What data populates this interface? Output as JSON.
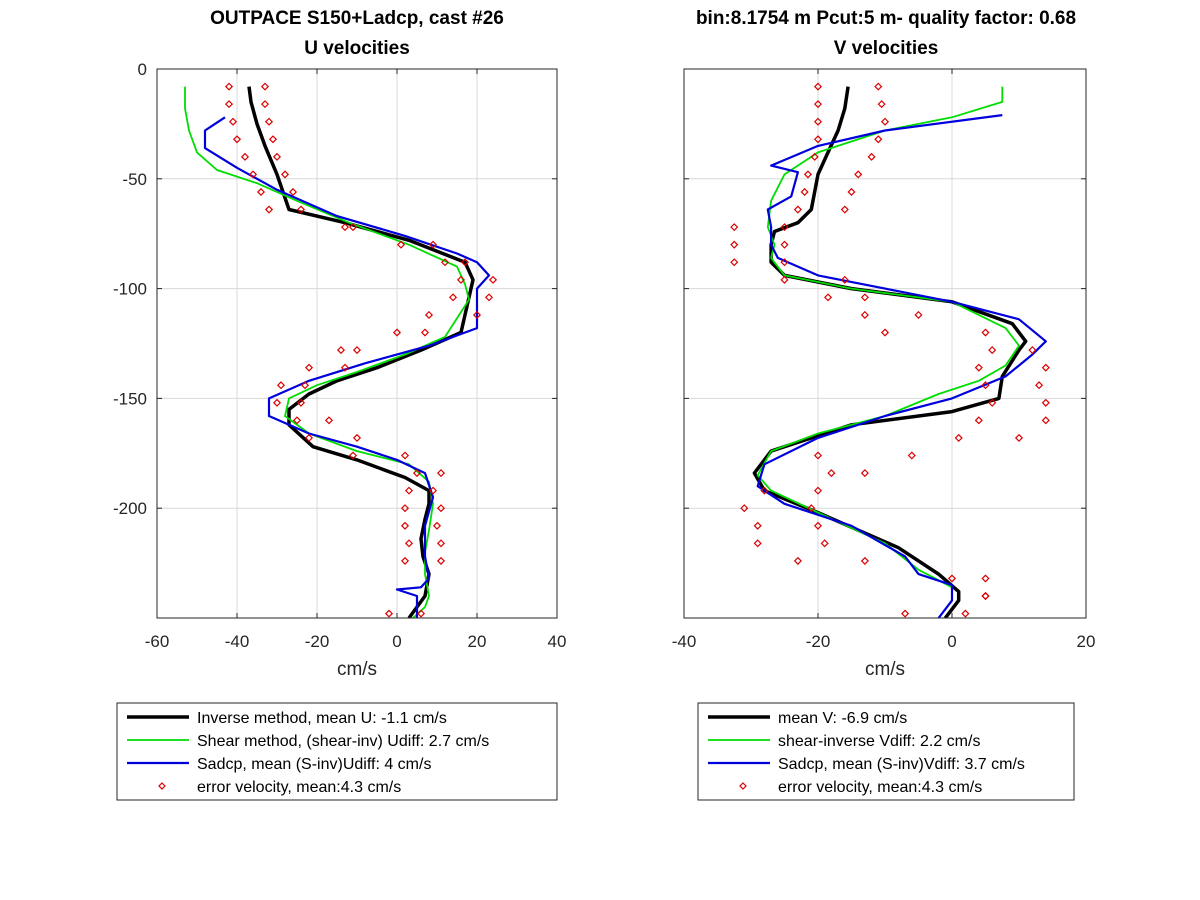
{
  "figure": {
    "left_title_line1": "OUTPACE S150+Ladcp, cast #26",
    "left_title_line2": "U velocities",
    "right_title_line1": "bin:8.1754 m  Pcut:5 m- quality factor:  0.68",
    "right_title_line2": "V velocities"
  },
  "colors": {
    "inverse": "#000000",
    "shear": "#00dd00",
    "sadcp": "#0000dd",
    "error": "#dd0000",
    "grid": "#d8d8d8"
  },
  "chart_data": [
    {
      "type": "line",
      "title": "U velocities",
      "xlabel": "cm/s",
      "ylabel": "",
      "xlim": [
        -60,
        40
      ],
      "ylim": [
        -250,
        0
      ],
      "xticks": [
        "-60",
        "-40",
        "-20",
        "0",
        "20",
        "40"
      ],
      "yticks": [
        "0",
        "-50",
        "-100",
        "-150",
        "-200"
      ],
      "xtick_values": [
        -60,
        -40,
        -20,
        0,
        20,
        40
      ],
      "ytick_values": [
        0,
        -50,
        -100,
        -150,
        -200
      ],
      "grid": true,
      "legend": {
        "placement": "below",
        "entries": [
          "Inverse method, mean U:  -1.1 cm/s",
          "Shear method, (shear-inv)  Udiff:  2.7 cm/s",
          "Sadcp, mean (S-inv)Udiff: 4 cm/s",
          "error velocity, mean:4.3 cm/s"
        ]
      },
      "series": [
        {
          "name": "Inverse method, mean U:  -1.1 cm/s",
          "style": "line-thick",
          "x": [
            -37,
            -36.5,
            -35,
            -33,
            -30,
            -27,
            -13,
            3,
            17,
            19,
            18,
            16,
            6,
            -5,
            -15,
            -22,
            -27,
            -27,
            -21,
            -10,
            2,
            8,
            8,
            7,
            6,
            6.5,
            8,
            7,
            3
          ],
          "y": [
            -8,
            -15,
            -25,
            -35,
            -48,
            -64,
            -70,
            -78,
            -88,
            -96,
            -104,
            -120,
            -128,
            -136,
            -142,
            -148,
            -155,
            -162,
            -172,
            -178,
            -186,
            -192,
            -198,
            -205,
            -214,
            -222,
            -230,
            -240,
            -250
          ]
        },
        {
          "name": "Shear method, (shear-inv)  Udiff:  2.7 cm/s",
          "style": "line",
          "x": [
            -53,
            -53,
            -52,
            -50,
            -45,
            -35,
            -25,
            -12,
            3,
            15,
            17,
            18,
            12,
            2,
            -10,
            -20,
            -27,
            -28,
            -22,
            -10,
            3,
            8,
            9,
            8,
            7,
            7,
            8,
            7,
            4
          ],
          "y": [
            -8,
            -18,
            -28,
            -38,
            -46,
            -52,
            -60,
            -70,
            -80,
            -90,
            -98,
            -105,
            -122,
            -130,
            -138,
            -144,
            -150,
            -158,
            -166,
            -174,
            -180,
            -188,
            -198,
            -210,
            -220,
            -230,
            -240,
            -245,
            -250
          ]
        },
        {
          "name": "Sadcp, mean (S-inv)Udiff: 4 cm/s",
          "style": "line",
          "x": [
            -43,
            -48,
            -48,
            -40,
            -30,
            -15,
            2,
            15,
            20,
            23,
            20,
            20,
            8,
            -8,
            -22,
            -32,
            -32,
            -22,
            -10,
            0,
            7,
            9,
            7,
            7,
            8,
            6,
            0,
            5,
            5
          ],
          "y": [
            -22,
            -28,
            -36,
            -45,
            -55,
            -67,
            -76,
            -84,
            -88,
            -94,
            -100,
            -118,
            -126,
            -134,
            -142,
            -150,
            -158,
            -166,
            -172,
            -178,
            -184,
            -195,
            -208,
            -222,
            -232,
            -236,
            -237,
            -240,
            -250
          ]
        },
        {
          "name": "error velocity, mean:4.3 cm/s",
          "style": "markers",
          "x": [
            -42,
            -33,
            -42,
            -33,
            -41,
            -32,
            -40,
            -31,
            -38,
            -30,
            -36,
            -28,
            -34,
            -26,
            -32,
            -24,
            -13,
            -11,
            1,
            9,
            17,
            12,
            24,
            16,
            23,
            14,
            20,
            8,
            0,
            7,
            -14,
            -10,
            -22,
            -13,
            -29,
            -23,
            -30,
            -24,
            -25,
            -17,
            -22,
            -10,
            -11,
            2,
            5,
            11,
            3,
            9,
            2,
            11,
            2,
            10,
            3,
            11,
            2,
            11,
            -2,
            6
          ],
          "y": [
            -8,
            -8,
            -16,
            -16,
            -24,
            -24,
            -32,
            -32,
            -40,
            -40,
            -48,
            -48,
            -56,
            -56,
            -64,
            -64,
            -72,
            -72,
            -80,
            -80,
            -88,
            -88,
            -96,
            -96,
            -104,
            -104,
            -112,
            -112,
            -120,
            -120,
            -128,
            -128,
            -136,
            -136,
            -144,
            -144,
            -152,
            -152,
            -160,
            -160,
            -168,
            -168,
            -176,
            -176,
            -184,
            -184,
            -192,
            -192,
            -200,
            -200,
            -208,
            -208,
            -216,
            -216,
            -224,
            -224,
            -248,
            -248
          ]
        }
      ]
    },
    {
      "type": "line",
      "title": "V velocities",
      "xlabel": "cm/s",
      "ylabel": "",
      "xlim": [
        -40,
        20
      ],
      "ylim": [
        -250,
        0
      ],
      "xticks": [
        "-40",
        "-20",
        "0",
        "20"
      ],
      "yticks": [],
      "xtick_values": [
        -40,
        -20,
        0,
        20
      ],
      "ytick_values": [
        0,
        -50,
        -100,
        -150,
        -200
      ],
      "grid": true,
      "legend": {
        "placement": "below",
        "entries": [
          "mean V:  -6.9 cm/s",
          "shear-inverse Vdiff:  2.2 cm/s",
          "Sadcp, mean (S-inv)Vdiff: 3.7 cm/s",
          "error velocity, mean:4.3 cm/s"
        ]
      },
      "series": [
        {
          "name": "mean V:  -6.9 cm/s",
          "style": "line-thick",
          "x": [
            -15.5,
            -16,
            -17,
            -18.5,
            -20,
            -21,
            -23,
            -26.5,
            -27,
            -27,
            -25,
            -15,
            0,
            9,
            11,
            10,
            7.5,
            7,
            0,
            -15,
            -27,
            -29.5,
            -28,
            -20,
            -8,
            -2,
            1,
            1,
            -1
          ],
          "y": [
            -8,
            -18,
            -28,
            -38,
            -48,
            -64,
            -70,
            -74,
            -80,
            -88,
            -94,
            -100,
            -106,
            -116,
            -124,
            -128,
            -140,
            -150,
            -156,
            -162,
            -174,
            -184,
            -192,
            -202,
            -218,
            -230,
            -238,
            -242,
            -250
          ]
        },
        {
          "name": "shear-inverse Vdiff:  2.2 cm/s",
          "style": "line",
          "x": [
            7.5,
            7.5,
            0,
            -10,
            -20,
            -25,
            -27,
            -27.5,
            -26.5,
            -27,
            -25,
            -15,
            0,
            8,
            10,
            8,
            4,
            -2,
            -10,
            -20,
            -27,
            -29,
            -27,
            -20,
            -10,
            -5,
            0,
            0,
            -2
          ],
          "y": [
            -8,
            -15,
            -22,
            -28,
            -38,
            -48,
            -60,
            -72,
            -80,
            -86,
            -94,
            -100,
            -106,
            -118,
            -126,
            -135,
            -142,
            -148,
            -158,
            -166,
            -174,
            -185,
            -192,
            -202,
            -216,
            -228,
            -236,
            -242,
            -250
          ]
        },
        {
          "name": "Sadcp, mean (S-inv)Vdiff: 3.7 cm/s",
          "style": "line",
          "x": [
            7.5,
            -10,
            -20,
            -27,
            -23,
            -24,
            -27.5,
            -27,
            -27,
            -26,
            -20,
            -10,
            0,
            10,
            14,
            12,
            8,
            0,
            -10,
            -20,
            -28,
            -29,
            -25,
            -15,
            -7,
            -5,
            0,
            0,
            -2
          ],
          "y": [
            -21,
            -28,
            -35,
            -44,
            -47,
            -58,
            -64,
            -72,
            -80,
            -86,
            -94,
            -100,
            -106,
            -114,
            -124,
            -130,
            -140,
            -150,
            -158,
            -168,
            -180,
            -190,
            -198,
            -208,
            -222,
            -230,
            -235,
            -242,
            -250
          ]
        },
        {
          "name": "error velocity, mean:4.3 cm/s",
          "style": "markers",
          "x": [
            -20,
            -11,
            -20,
            -10.5,
            -20,
            -10,
            -20,
            -11,
            -20.5,
            -12,
            -21.5,
            -14,
            -22,
            -15,
            -23,
            -16,
            -32.5,
            -25,
            -32.5,
            -25,
            -32.5,
            -25,
            -25,
            -16,
            -18.5,
            -13,
            -13,
            -5,
            -10,
            5,
            6,
            12,
            4,
            14,
            5,
            13,
            6,
            14,
            4,
            14,
            1,
            10,
            -6,
            -20,
            -13,
            -18,
            -28,
            -20,
            -31,
            -21,
            -29,
            -20,
            -29,
            -19,
            -23,
            -13,
            0,
            5,
            5,
            5,
            -7,
            2
          ],
          "y": [
            -8,
            -8,
            -16,
            -16,
            -24,
            -24,
            -32,
            -32,
            -40,
            -40,
            -48,
            -48,
            -56,
            -56,
            -64,
            -64,
            -72,
            -72,
            -80,
            -80,
            -88,
            -88,
            -96,
            -96,
            -104,
            -104,
            -112,
            -112,
            -120,
            -120,
            -128,
            -128,
            -136,
            -136,
            -144,
            -144,
            -152,
            -152,
            -160,
            -160,
            -168,
            -168,
            -176,
            -176,
            -184,
            -184,
            -192,
            -192,
            -200,
            -200,
            -208,
            -208,
            -216,
            -216,
            -224,
            -224,
            -232,
            -232,
            -240,
            -240,
            -248,
            -248
          ]
        }
      ]
    }
  ]
}
